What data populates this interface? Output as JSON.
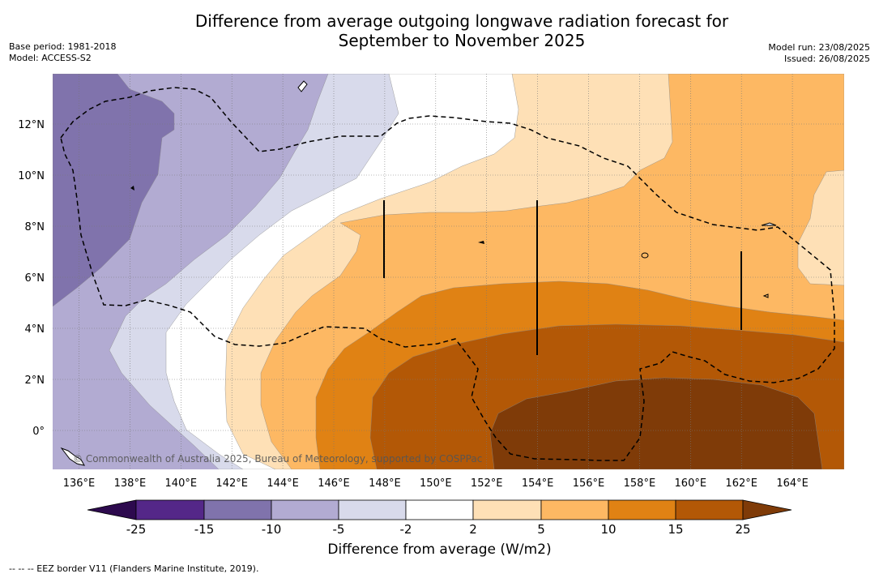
{
  "header": {
    "title_line1": "Difference from average outgoing longwave radiation forecast for",
    "title_line2": "September to November 2025",
    "base_period": "Base period: 1981-2018",
    "model": "Model: ACCESS-S2",
    "model_run": "Model run: 23/08/2025",
    "issued": "Issued: 26/08/2025"
  },
  "map": {
    "x_tick_labels": [
      "136°E",
      "138°E",
      "140°E",
      "142°E",
      "144°E",
      "146°E",
      "148°E",
      "150°E",
      "152°E",
      "154°E",
      "156°E",
      "158°E",
      "160°E",
      "162°E",
      "164°E"
    ],
    "y_tick_labels": [
      "12°N",
      "10°N",
      "8°N",
      "6°N",
      "4°N",
      "2°N",
      "0°"
    ],
    "copyright": "© Commonwealth of Australia 2025, Bureau of Meteorology, supported by COSPPac"
  },
  "colorbar": {
    "title": "Difference from average (W/m2)",
    "tick_labels": [
      "-25",
      "-15",
      "-10",
      "-5",
      "-2",
      "2",
      "5",
      "10",
      "15",
      "25"
    ],
    "colors": {
      "below_min": "#2d0a4e",
      "c1": "#542788",
      "c2": "#8073ac",
      "c3": "#b2abd2",
      "c4": "#d8daeb",
      "c5": "#ffffff",
      "c6": "#fee0b6",
      "c7": "#fdb863",
      "c8": "#e08214",
      "c9": "#b35806",
      "above_max": "#7f3b08"
    }
  },
  "footnote": "--  --  -- EEZ border V11 (Flanders Marine Institute, 2019)."
}
